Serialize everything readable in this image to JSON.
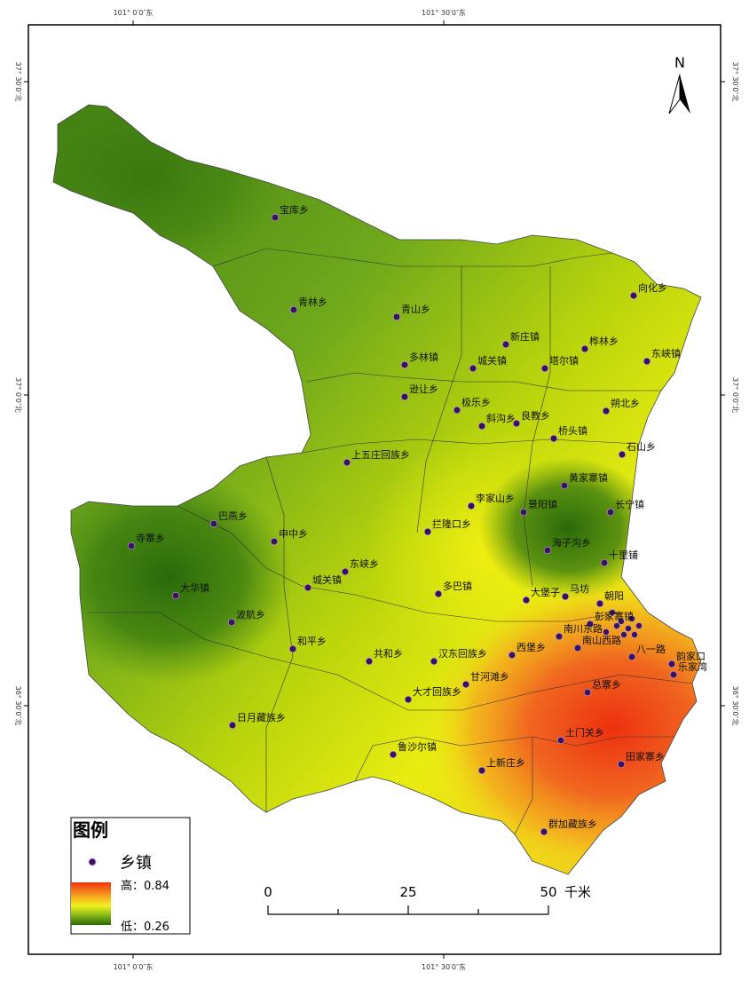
{
  "graticule": {
    "longitudes": [
      "101° 0′0″东",
      "101° 30′0″东"
    ],
    "latitudes": [
      "37° 30′0″北",
      "37° 0′0″北",
      "36° 30′0″北"
    ]
  },
  "north_arrow": "N",
  "towns": [
    "宝库乡",
    "青林乡",
    "青山乡",
    "向化乡",
    "新庄镇",
    "桦林乡",
    "多林镇",
    "城关镇",
    "塔尔镇",
    "东峡镇",
    "逊让乡",
    "极乐乡",
    "朔北乡",
    "斜沟乡",
    "良教乡",
    "桥头镇",
    "石山乡",
    "上五庄回族乡",
    "黄家寨镇",
    "李家山乡",
    "景阳镇",
    "长宁镇",
    "巴燕乡",
    "申中乡",
    "拦隆口乡",
    "寺寨乡",
    "海子沟乡",
    "十里铺",
    "东峡乡",
    "大华镇",
    "城关镇",
    "多巴镇",
    "大堡子",
    "马坊",
    "朝阳",
    "波航乡",
    "彭家寨镇",
    "和平乡",
    "南川东路",
    "西堡乡",
    "共和乡",
    "汉东回族乡",
    "南山西路",
    "八一路",
    "韵家口",
    "乐家湾",
    "甘河滩乡",
    "总寨乡",
    "大才回族乡",
    "日月藏族乡",
    "土门关乡",
    "鲁沙尔镇",
    "田家寨乡",
    "上新庄乡",
    "群加藏族乡"
  ],
  "legend": {
    "title": "图例",
    "town_symbol": "乡镇",
    "high": "高：0.84",
    "low": "低：0.26"
  },
  "scale_bar": {
    "ticks": [
      "0",
      "25",
      "50"
    ],
    "unit": "千米"
  }
}
